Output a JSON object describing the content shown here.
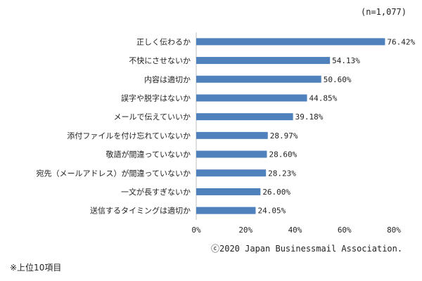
{
  "sample_note": "(n=1,077)",
  "copyright": "ⓒ2020 Japan Businessmail Association.",
  "footnote": "※上位10項目",
  "chart_data": {
    "type": "bar",
    "orientation": "horizontal",
    "categories": [
      "正しく伝わるか",
      "不快にさせないか",
      "内容は適切か",
      "誤字や脱字はないか",
      "メールで伝えていいか",
      "添付ファイルを付け忘れていないか",
      "敬語が間違っていないか",
      "宛先（メールアドレス）が間違っていないか",
      "一文が長すぎないか",
      "送信するタイミングは適切か"
    ],
    "values": [
      76.42,
      54.13,
      50.6,
      44.85,
      39.18,
      28.97,
      28.6,
      28.23,
      26.0,
      24.05
    ],
    "data_labels": [
      "76.42%",
      "54.13%",
      "50.60%",
      "44.85%",
      "39.18%",
      "28.97%",
      "28.60%",
      "28.23%",
      "26.00%",
      "24.05%"
    ],
    "xlim": [
      0,
      80
    ],
    "xticks": [
      "0%",
      "20%",
      "40%",
      "60%",
      "80%"
    ],
    "grid": false,
    "bar_color": "#4f81bd"
  }
}
